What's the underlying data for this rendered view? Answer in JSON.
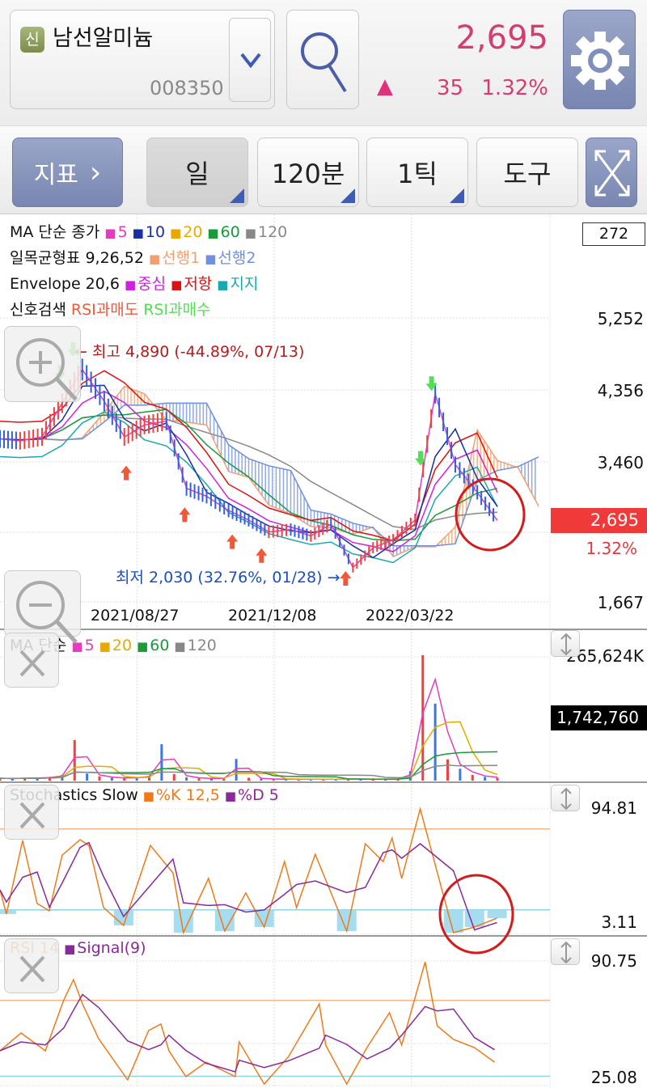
{
  "header": {
    "badge": "신",
    "stock_name": "남선알미늄",
    "stock_code": "008350",
    "price": "2,695",
    "change_arrow": "▲",
    "change": "35",
    "change_pct": "1.32%",
    "price_color": "#d63c6e"
  },
  "toolbar": {
    "indicator_label": "지표",
    "indicator_chevron": "›",
    "period_day": "일",
    "period_min": "120분",
    "period_tick": "1틱",
    "tools": "도구"
  },
  "price_panel": {
    "legend": [
      {
        "title": "MA 단순 종가",
        "items": [
          {
            "label": "5",
            "color": "#e33cc0"
          },
          {
            "label": "10",
            "color": "#1a2fa0"
          },
          {
            "label": "20",
            "color": "#e8a800"
          },
          {
            "label": "60",
            "color": "#1a9a3a"
          },
          {
            "label": "120",
            "color": "#888888"
          }
        ]
      },
      {
        "title": "일목균형표 9,26,52",
        "items": [
          {
            "label": "선행1",
            "color": "#f0a070"
          },
          {
            "label": "선행2",
            "color": "#6f8fe0"
          }
        ]
      },
      {
        "title": "Envelope 20,6",
        "items": [
          {
            "label": "중심",
            "color": "#cc22dd"
          },
          {
            "label": "저항",
            "color": "#dd1111"
          },
          {
            "label": "지지",
            "color": "#1aa8b0"
          }
        ]
      },
      {
        "title": "신호검색",
        "items": [
          {
            "label": "RSI과매도",
            "color": "#f05a3a",
            "plain": true
          },
          {
            "label": "RSI과매수",
            "color": "#55dd55",
            "plain": true
          }
        ]
      }
    ],
    "count_box": "272",
    "y_labels": [
      "5,252",
      "4,356",
      "3,460",
      "1,667"
    ],
    "current_price": "2,695",
    "current_pct": "1.32%",
    "x_labels": [
      "2021/08/27",
      "2021/12/08",
      "2022/03/22"
    ],
    "high_note": "← 최고 4,890 (-44.89%, 07/13)",
    "low_note": "최저 2,030 (32.76%, 01/28) →"
  },
  "volume_panel": {
    "legend": {
      "title": "MA 단순",
      "items": [
        {
          "label": "5",
          "color": "#e33cc0"
        },
        {
          "label": "20",
          "color": "#e8a800"
        },
        {
          "label": "60",
          "color": "#1a9a3a"
        },
        {
          "label": "120",
          "color": "#888888"
        }
      ]
    },
    "max_label": "265,624K",
    "current": "1,742,760"
  },
  "stoch_panel": {
    "title": "Stochastics Slow",
    "items": [
      {
        "label": "%K 12,5",
        "color": "#f07a1a"
      },
      {
        "label": "%D 5",
        "color": "#8a2a9a"
      }
    ],
    "max_label": "94.81",
    "min_label": "3.11"
  },
  "rsi_panel": {
    "title": "RSI 14",
    "title_color": "#f07a1a",
    "items": [
      {
        "label": "Signal(9)",
        "color": "#8a2a9a"
      }
    ],
    "max_label": "90.75",
    "min_label": "25.08"
  },
  "chart_data": [
    {
      "type": "line",
      "name": "price",
      "ylim": [
        1667,
        5252
      ],
      "x_ticks_day": [
        75,
        150,
        225
      ],
      "days": [
        0,
        11,
        23,
        34,
        45,
        57,
        68,
        79,
        91,
        102,
        113,
        125,
        136,
        147,
        159,
        170,
        181,
        193,
        204,
        215,
        227,
        238,
        249,
        261,
        272
      ],
      "close": [
        3724,
        3700,
        3750,
        4177,
        4600,
        4200,
        3750,
        3900,
        3950,
        3100,
        3000,
        2820,
        2700,
        2550,
        2580,
        2500,
        2650,
        2100,
        2350,
        2450,
        2700,
        4300,
        3400,
        3050,
        2695
      ],
      "buy_signals_day": [
        69,
        101,
        127,
        143,
        189
      ],
      "sell_signals_day": [
        33,
        40,
        230,
        236
      ],
      "envelope_pct": 6
    },
    {
      "type": "bar",
      "name": "volume",
      "unit": "K",
      "ymax": 265624,
      "values": [
        5000,
        4000,
        6000,
        5000,
        8000,
        12000,
        86000,
        15000,
        9000,
        6000,
        5000,
        7000,
        10000,
        77000,
        14000,
        7000,
        5000,
        4000,
        5000,
        46000,
        6000,
        4000,
        3000,
        3000,
        3000,
        3000,
        3000,
        3000,
        4000,
        3000,
        3000,
        3000,
        4000,
        20000,
        265624,
        163000,
        45000,
        25000,
        12000,
        8000,
        6000
      ]
    },
    {
      "type": "line",
      "name": "stochastics",
      "ylim": [
        3.11,
        94.81
      ],
      "levels": [
        80,
        20
      ],
      "days": [
        0,
        3.5,
        12.4,
        20.3,
        27,
        34,
        43.8,
        48.6,
        56.6,
        67.6,
        82.2,
        94.6,
        100.3,
        114,
        122.9,
        134.4,
        144.5,
        155.6,
        162.2,
        172.4,
        189.6,
        199.8,
        209.5,
        214.4,
        219.7,
        229.8,
        248,
        259.5,
        271.8
      ],
      "k": [
        34.8,
        16.9,
        71.4,
        24.7,
        19.3,
        60.6,
        72,
        67.8,
        21.7,
        8.5,
        67.8,
        47.4,
        3.1,
        43.3,
        4.3,
        32.5,
        7.3,
        55.8,
        21.7,
        61.2,
        4.3,
        69,
        55.8,
        73.2,
        43.3,
        94.8,
        3.1,
        7.3,
        13.9
      ]
    },
    {
      "type": "line",
      "name": "rsi",
      "ylim": [
        25.08,
        90.75
      ],
      "levels": [
        70,
        30
      ],
      "days": [
        0,
        11.5,
        24.8,
        34.9,
        40.2,
        45.1,
        53.9,
        69.8,
        81.3,
        88,
        92.4,
        101.7,
        112.7,
        128.6,
        130.8,
        144.5,
        157.8,
        174.6,
        178.1,
        189.6,
        200.7,
        213,
        219.7,
        232.5,
        239.1,
        248,
        259.5,
        270.5
      ],
      "rsi": [
        43.4,
        52.8,
        43.4,
        70.3,
        80.9,
        68.1,
        49.8,
        28.1,
        54.1,
        57.5,
        43.4,
        29.8,
        37.4,
        29.8,
        48.1,
        25.9,
        40.4,
        68.1,
        46.4,
        25.9,
        45.1,
        63.5,
        46.4,
        90.3,
        56.6,
        49.4,
        45.1,
        37.4
      ]
    }
  ]
}
